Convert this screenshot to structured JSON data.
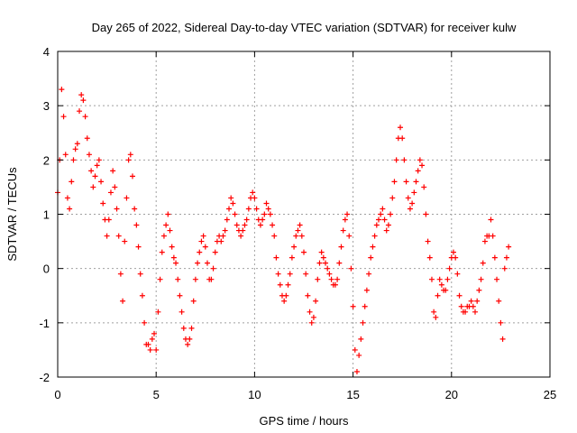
{
  "chart_data": {
    "type": "scatter",
    "title": "Day 265 of 2022, Sidereal Day-to-day VTEC variation (SDTVAR) for receiver kulw",
    "xlabel": "GPS time / hours",
    "ylabel": "SDTVAR / TECUs",
    "xlim": [
      0,
      25
    ],
    "ylim": [
      -2,
      4
    ],
    "xticks": [
      "0",
      "5",
      "10",
      "15",
      "20",
      "25"
    ],
    "yticks": [
      "-2",
      "-1",
      "0",
      "1",
      "2",
      "3",
      "4"
    ],
    "grid": true,
    "marker": "plus",
    "color": "#ff0000",
    "series": [
      {
        "name": "SDTVAR",
        "x": [
          0.0,
          0.1,
          0.2,
          0.3,
          0.4,
          0.5,
          0.6,
          0.7,
          0.8,
          0.9,
          1.0,
          1.1,
          1.2,
          1.3,
          1.4,
          1.5,
          1.6,
          1.7,
          1.8,
          1.9,
          2.0,
          2.1,
          2.2,
          2.3,
          2.4,
          2.5,
          2.6,
          2.7,
          2.8,
          2.9,
          3.0,
          3.1,
          3.2,
          3.3,
          3.4,
          3.5,
          3.6,
          3.7,
          3.8,
          3.9,
          4.0,
          4.1,
          4.2,
          4.3,
          4.4,
          4.5,
          4.6,
          4.7,
          4.8,
          4.9,
          5.0,
          5.1,
          5.2,
          5.3,
          5.4,
          5.5,
          5.6,
          5.7,
          5.8,
          5.9,
          6.0,
          6.1,
          6.2,
          6.3,
          6.4,
          6.5,
          6.6,
          6.7,
          6.8,
          6.9,
          7.0,
          7.1,
          7.2,
          7.3,
          7.4,
          7.5,
          7.6,
          7.7,
          7.8,
          7.9,
          8.0,
          8.1,
          8.2,
          8.3,
          8.4,
          8.5,
          8.6,
          8.7,
          8.8,
          8.9,
          9.0,
          9.1,
          9.2,
          9.3,
          9.4,
          9.5,
          9.6,
          9.7,
          9.8,
          9.9,
          10.0,
          10.1,
          10.2,
          10.3,
          10.4,
          10.5,
          10.6,
          10.7,
          10.8,
          10.9,
          11.0,
          11.1,
          11.2,
          11.3,
          11.4,
          11.5,
          11.6,
          11.7,
          11.8,
          11.9,
          12.0,
          12.1,
          12.2,
          12.3,
          12.4,
          12.5,
          12.6,
          12.7,
          12.8,
          12.9,
          13.0,
          13.1,
          13.2,
          13.3,
          13.4,
          13.5,
          13.6,
          13.7,
          13.8,
          13.9,
          14.0,
          14.1,
          14.2,
          14.3,
          14.4,
          14.5,
          14.6,
          14.7,
          14.8,
          14.9,
          15.0,
          15.1,
          15.2,
          15.3,
          15.4,
          15.5,
          15.6,
          15.7,
          15.8,
          15.9,
          16.0,
          16.1,
          16.2,
          16.3,
          16.4,
          16.5,
          16.6,
          16.7,
          16.8,
          16.9,
          17.0,
          17.1,
          17.2,
          17.3,
          17.4,
          17.5,
          17.6,
          17.7,
          17.8,
          17.9,
          18.0,
          18.1,
          18.2,
          18.3,
          18.4,
          18.5,
          18.6,
          18.7,
          18.8,
          18.9,
          19.0,
          19.1,
          19.2,
          19.3,
          19.4,
          19.5,
          19.6,
          19.7,
          19.8,
          19.9,
          20.0,
          20.1,
          20.2,
          20.3,
          20.4,
          20.5,
          20.6,
          20.7,
          20.8,
          20.9,
          21.0,
          21.1,
          21.2,
          21.3,
          21.4,
          21.5,
          21.6,
          21.7,
          21.8,
          21.9,
          22.0,
          22.1,
          22.2,
          22.3,
          22.4,
          22.5,
          22.6,
          22.7,
          22.8,
          22.9
        ],
        "y": [
          1.4,
          2.0,
          3.3,
          2.8,
          2.1,
          1.3,
          1.1,
          1.6,
          2.0,
          2.2,
          2.3,
          2.9,
          3.2,
          3.1,
          2.8,
          2.4,
          2.1,
          1.8,
          1.5,
          1.7,
          1.9,
          2.0,
          1.6,
          1.2,
          0.9,
          0.6,
          0.9,
          1.4,
          1.8,
          1.5,
          1.1,
          0.6,
          -0.1,
          -0.6,
          0.5,
          1.3,
          2.0,
          2.1,
          1.7,
          1.1,
          0.8,
          0.4,
          -0.1,
          -0.5,
          -1.0,
          -1.4,
          -1.4,
          -1.5,
          -1.3,
          -1.2,
          -1.5,
          -0.8,
          -0.2,
          0.3,
          0.6,
          0.8,
          1.0,
          0.7,
          0.4,
          0.2,
          0.1,
          -0.2,
          -0.5,
          -0.8,
          -1.1,
          -1.3,
          -1.4,
          -1.3,
          -1.1,
          -0.6,
          -0.2,
          0.1,
          0.3,
          0.5,
          0.6,
          0.4,
          0.1,
          -0.2,
          -0.2,
          0.0,
          0.3,
          0.5,
          0.6,
          0.5,
          0.6,
          0.7,
          0.9,
          1.1,
          1.3,
          1.2,
          1.0,
          0.8,
          0.7,
          0.6,
          0.7,
          0.8,
          0.9,
          1.1,
          1.3,
          1.4,
          1.3,
          1.1,
          0.9,
          0.8,
          0.9,
          1.0,
          1.2,
          1.1,
          1.0,
          0.8,
          0.6,
          0.2,
          -0.1,
          -0.3,
          -0.5,
          -0.6,
          -0.5,
          -0.3,
          -0.1,
          0.2,
          0.4,
          0.6,
          0.7,
          0.8,
          0.6,
          0.3,
          -0.1,
          -0.5,
          -0.8,
          -1.0,
          -0.9,
          -0.6,
          -0.2,
          0.1,
          0.3,
          0.2,
          0.1,
          0.0,
          -0.1,
          -0.2,
          -0.3,
          -0.3,
          -0.2,
          0.1,
          0.4,
          0.7,
          0.9,
          1.0,
          0.6,
          0.0,
          -0.7,
          -1.5,
          -1.9,
          -1.6,
          -1.3,
          -1.0,
          -0.7,
          -0.4,
          -0.1,
          0.2,
          0.4,
          0.6,
          0.8,
          0.9,
          1.0,
          1.1,
          0.9,
          0.7,
          0.8,
          1.0,
          1.3,
          1.6,
          2.0,
          2.4,
          2.6,
          2.4,
          2.0,
          1.6,
          1.3,
          1.1,
          1.2,
          1.4,
          1.6,
          1.8,
          2.0,
          1.9,
          1.5,
          1.0,
          0.5,
          0.2,
          -0.2,
          -0.8,
          -0.9,
          -0.5,
          -0.2,
          -0.3,
          -0.4,
          -0.4,
          -0.2,
          0.0,
          0.2,
          0.3,
          0.2,
          -0.1,
          -0.5,
          -0.7,
          -0.8,
          -0.8,
          -0.7,
          -0.7,
          -0.6,
          -0.7,
          -0.8,
          -0.6,
          -0.4,
          -0.2,
          0.1,
          0.5,
          0.6,
          0.6,
          0.9,
          0.6,
          0.2,
          -0.2,
          -0.6,
          -1.0,
          -1.3,
          0.0,
          0.2,
          0.4
        ]
      }
    ]
  }
}
